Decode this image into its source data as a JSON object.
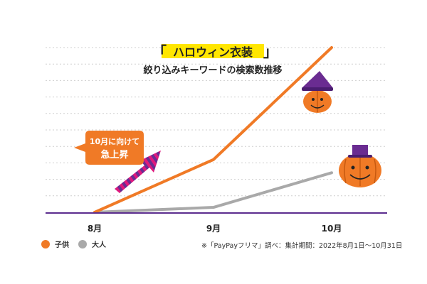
{
  "chart_data": {
    "type": "line",
    "title_main": "ハロウィン衣装",
    "title_bracket_open": "「",
    "title_bracket_close": "」",
    "subtitle": "絞り込みキーワードの検索数推移",
    "categories": [
      "8月",
      "9月",
      "10月"
    ],
    "series": [
      {
        "name": "子供",
        "color": "#f07a26",
        "values": [
          0,
          32,
          100
        ]
      },
      {
        "name": "大人",
        "color": "#a9a9a9",
        "values": [
          0,
          3,
          24
        ]
      }
    ],
    "ylim": [
      0,
      100
    ],
    "grid": true,
    "legend": "bottom-left",
    "annotation": {
      "line1": "10月に向けて",
      "line2": "急上昇"
    },
    "colors": {
      "highlight": "#ffe600",
      "axis": "#5b2d8e",
      "callout": "#f07a26",
      "arrow": "#e0197d",
      "arrow_stripe": "#6a2c91"
    }
  },
  "source_note": "※「PayPayフリマ」調べ：集計期間：2022年8月1日〜10月31日"
}
